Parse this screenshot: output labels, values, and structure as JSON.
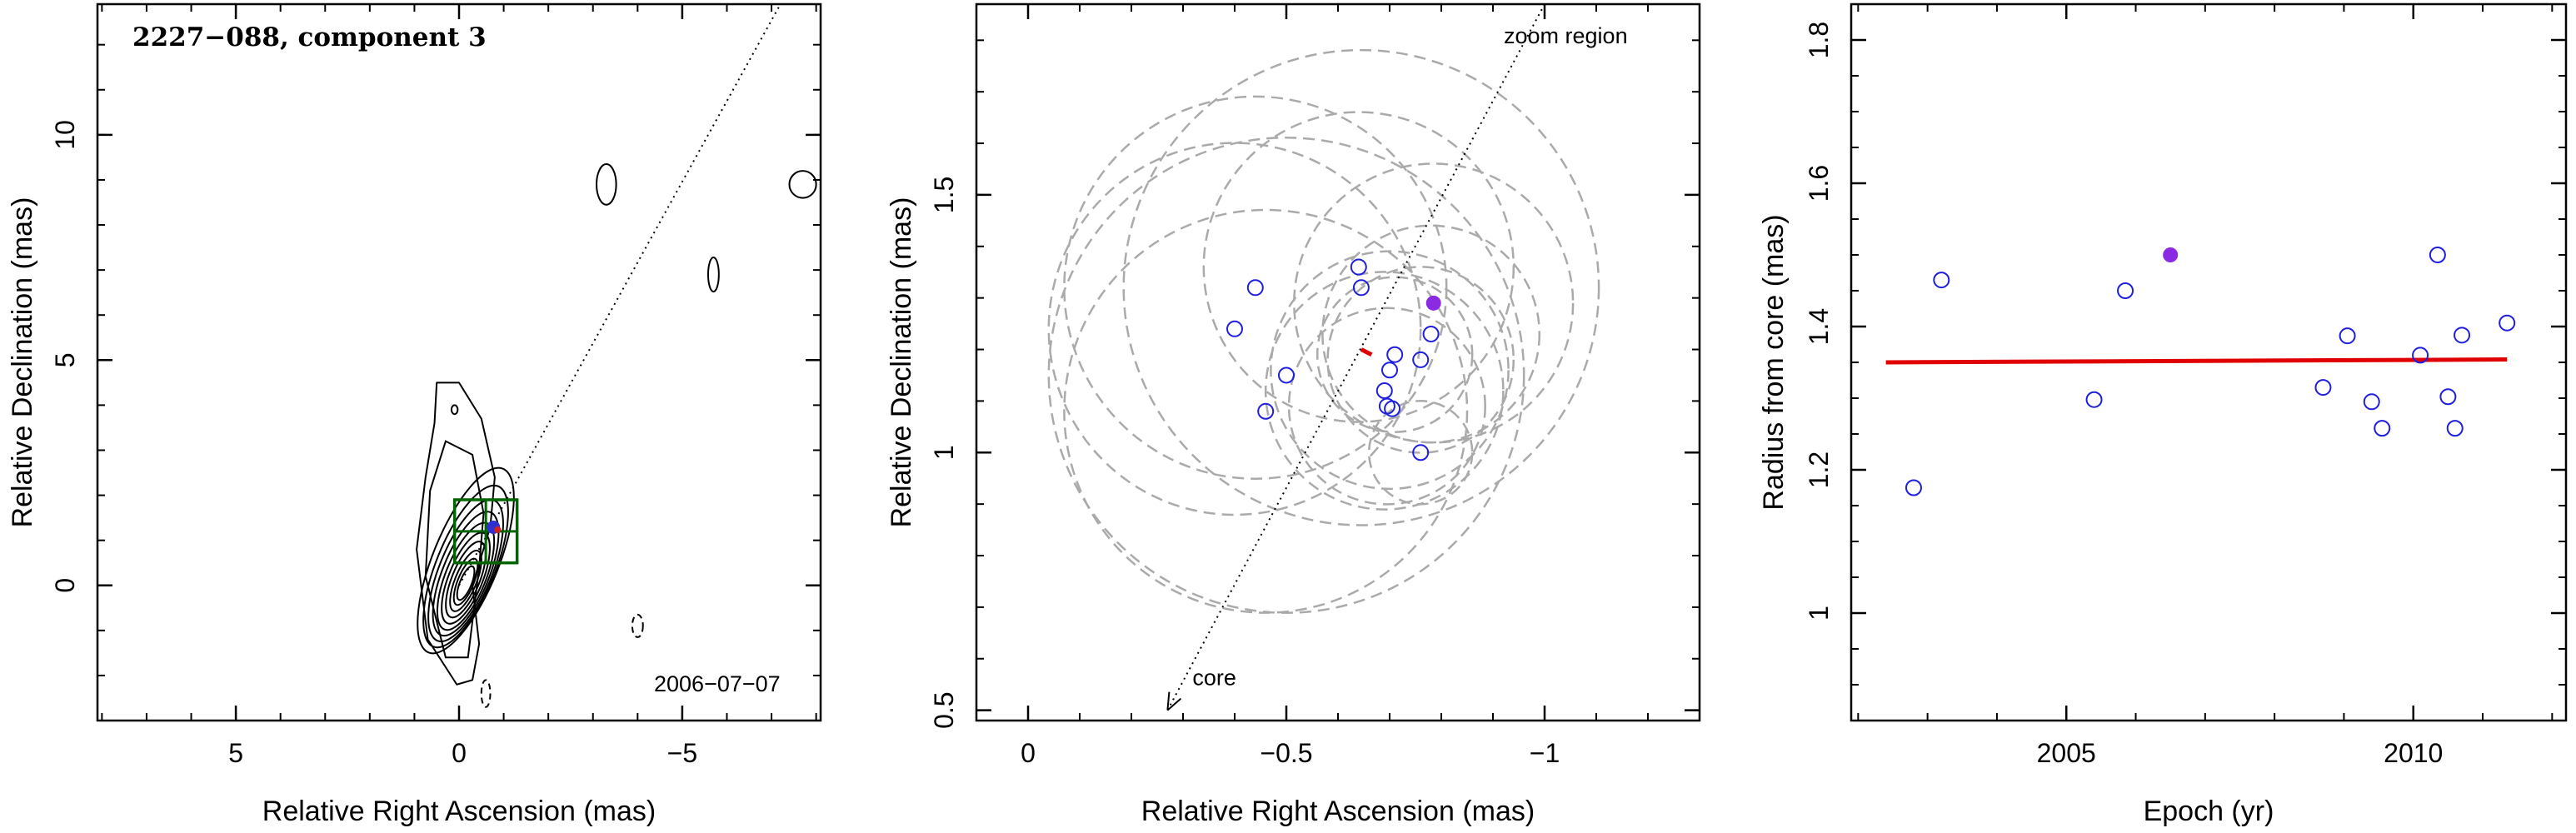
{
  "chart_data": [
    {
      "type": "contour",
      "title": "2227−088, component 3",
      "epoch_label": "2006−07−07",
      "xlabel": "Relative Right Ascension (mas)",
      "ylabel": "Relative Declination (mas)",
      "xlim": [
        8.1,
        -8.1
      ],
      "ylim": [
        -3.0,
        12.9
      ],
      "xticks": [
        5,
        0,
        -5
      ],
      "xtick_labels": [
        "5",
        "0",
        "−5"
      ],
      "yticks": [
        0,
        5,
        10
      ],
      "ytick_labels": [
        "0",
        "5",
        "10"
      ],
      "zoom_box": {
        "x0": -1.3,
        "x1": 0.1,
        "y0": 0.5,
        "y1": 1.9
      },
      "component_point": {
        "x": -0.77,
        "y": 1.29
      },
      "trajectory_line": {
        "x0": 0,
        "y0": 0,
        "x1": -7.2,
        "y1": 12.9
      },
      "contours_center": {
        "x": 0.0,
        "y": 0.0
      },
      "colors": {
        "contour": "#000000",
        "box": "#006400",
        "component": "#8a2be2"
      }
    },
    {
      "type": "scatter",
      "xlabel": "Relative Right Ascension (mas)",
      "ylabel": "Relative Declination (mas)",
      "xlim": [
        0.1,
        -1.3
      ],
      "ylim": [
        0.48,
        1.87
      ],
      "xticks": [
        0,
        -0.5,
        -1
      ],
      "xtick_labels": [
        "0",
        "−0.5",
        "−1"
      ],
      "yticks": [
        0.5,
        1,
        1.5
      ],
      "ytick_labels": [
        "0.5",
        "1",
        "1.5"
      ],
      "annotation_zoom": "zoom region",
      "annotation_core": "core",
      "trajectory_line": {
        "x0": -0.27,
        "y0": 0.5,
        "x1": -1.0,
        "y1": 1.87
      },
      "points": [
        {
          "x": -0.4,
          "y": 1.24
        },
        {
          "x": -0.44,
          "y": 1.32
        },
        {
          "x": -0.46,
          "y": 1.08
        },
        {
          "x": -0.5,
          "y": 1.15
        },
        {
          "x": -0.64,
          "y": 1.36
        },
        {
          "x": -0.645,
          "y": 1.32
        },
        {
          "x": -0.69,
          "y": 1.12
        },
        {
          "x": -0.695,
          "y": 1.09
        },
        {
          "x": -0.7,
          "y": 1.16
        },
        {
          "x": -0.71,
          "y": 1.19
        },
        {
          "x": -0.705,
          "y": 1.085
        },
        {
          "x": -0.76,
          "y": 1.18
        },
        {
          "x": -0.76,
          "y": 1.0
        },
        {
          "x": -0.78,
          "y": 1.23
        }
      ],
      "highlight_point": {
        "x": -0.785,
        "y": 1.29
      },
      "fit_segment": {
        "x0": -0.645,
        "y0": 1.2,
        "x1": -0.665,
        "y1": 1.19
      },
      "error_circles": [
        {
          "x": -0.4,
          "y": 1.24,
          "r": 0.36
        },
        {
          "x": -0.44,
          "y": 1.32,
          "r": 0.37
        },
        {
          "x": -0.46,
          "y": 1.08,
          "r": 0.39
        },
        {
          "x": -0.5,
          "y": 1.15,
          "r": 0.46
        },
        {
          "x": -0.64,
          "y": 1.36,
          "r": 0.3
        },
        {
          "x": -0.645,
          "y": 1.32,
          "r": 0.46
        },
        {
          "x": -0.69,
          "y": 1.12,
          "r": 0.23
        },
        {
          "x": -0.695,
          "y": 1.09,
          "r": 0.19
        },
        {
          "x": -0.7,
          "y": 1.16,
          "r": 0.23
        },
        {
          "x": -0.71,
          "y": 1.19,
          "r": 0.15
        },
        {
          "x": -0.76,
          "y": 1.18,
          "r": 0.18
        },
        {
          "x": -0.76,
          "y": 1.0,
          "r": 0.1
        },
        {
          "x": -0.78,
          "y": 1.23,
          "r": 0.21
        },
        {
          "x": -0.785,
          "y": 1.29,
          "r": 0.27
        }
      ],
      "colors": {
        "points": "#1f1fe0",
        "highlight": "#8a2be2",
        "circles": "#aaaaaa",
        "fit": "#e00000"
      }
    },
    {
      "type": "scatter",
      "xlabel": "Epoch (yr)",
      "ylabel": "Radius from core (mas)",
      "xlim": [
        2001.9,
        2012.2
      ],
      "ylim": [
        0.85,
        1.85
      ],
      "xticks": [
        2005,
        2010
      ],
      "xtick_labels": [
        "2005",
        "2010"
      ],
      "yticks": [
        1,
        1.2,
        1.4,
        1.6,
        1.8
      ],
      "ytick_labels": [
        "1",
        "1.2",
        "1.4",
        "1.6",
        "1.8"
      ],
      "points": [
        {
          "x": 2002.8,
          "y": 1.175
        },
        {
          "x": 2003.2,
          "y": 1.465
        },
        {
          "x": 2005.4,
          "y": 1.298
        },
        {
          "x": 2005.85,
          "y": 1.45
        },
        {
          "x": 2008.7,
          "y": 1.315
        },
        {
          "x": 2009.05,
          "y": 1.387
        },
        {
          "x": 2009.4,
          "y": 1.295
        },
        {
          "x": 2009.55,
          "y": 1.258
        },
        {
          "x": 2010.1,
          "y": 1.36
        },
        {
          "x": 2010.35,
          "y": 1.5
        },
        {
          "x": 2010.5,
          "y": 1.302
        },
        {
          "x": 2010.6,
          "y": 1.258
        },
        {
          "x": 2010.7,
          "y": 1.388
        },
        {
          "x": 2011.35,
          "y": 1.405
        }
      ],
      "highlight_point": {
        "x": 2006.5,
        "y": 1.5
      },
      "fit_line": {
        "x0": 2002.4,
        "y0": 1.35,
        "x1": 2011.35,
        "y1": 1.354
      },
      "colors": {
        "points": "#1f1fe0",
        "highlight": "#8a2be2",
        "fit": "#e00000"
      }
    }
  ]
}
